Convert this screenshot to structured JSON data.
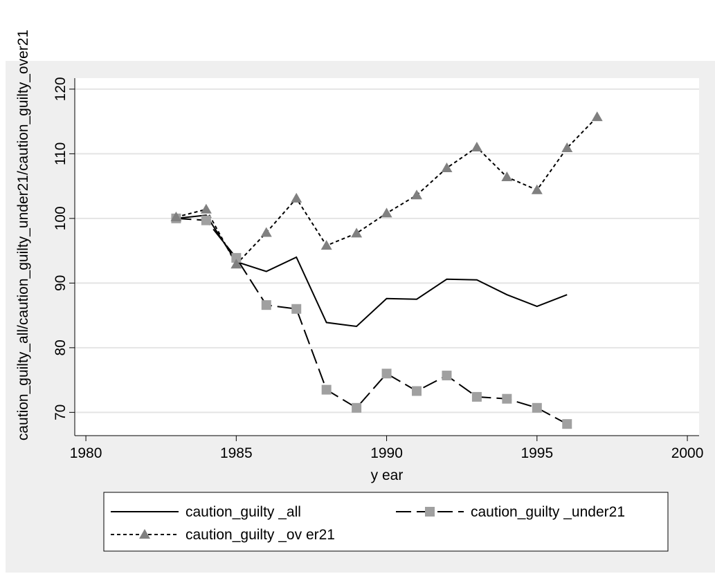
{
  "chart_data": {
    "type": "line",
    "ylabel": "caution_guilty_all/caution_guilty_under21/caution_guilty_over21",
    "xlabel": "y ear",
    "x": [
      1983,
      1984,
      1985,
      1986,
      1987,
      1988,
      1989,
      1990,
      1991,
      1992,
      1993,
      1994,
      1995,
      1996,
      1997
    ],
    "series": [
      {
        "name": "caution_guilty _all",
        "color": "#000000",
        "dash": "solid",
        "marker": "none",
        "values": [
          100,
          100.5,
          93.3,
          91.8,
          94.0,
          83.9,
          83.3,
          87.6,
          87.5,
          90.6,
          90.5,
          88.2,
          86.4,
          88.2,
          null
        ]
      },
      {
        "name": "caution_guilty _under21",
        "color": "#a0a0a0",
        "dash": "long",
        "marker": "square",
        "values": [
          100,
          99.7,
          93.9,
          86.6,
          86.0,
          73.5,
          70.7,
          76.0,
          73.3,
          75.7,
          72.4,
          72.1,
          70.7,
          68.2,
          null
        ]
      },
      {
        "name": "caution_guilty _ov er21",
        "color": "#808080",
        "dash": "short",
        "marker": "triangle",
        "values": [
          100.2,
          101.4,
          92.9,
          97.8,
          103.1,
          95.8,
          97.7,
          100.8,
          103.6,
          107.8,
          111.0,
          106.4,
          104.4,
          110.9,
          115.7
        ]
      }
    ],
    "xlim": [
      1979.63,
      2000.39
    ],
    "xticks": [
      1980,
      1985,
      1990,
      1995,
      2000
    ],
    "ylim": [
      66.4,
      121.7
    ],
    "yticks": [
      70,
      80,
      90,
      100,
      110,
      120
    ],
    "grid": true
  }
}
